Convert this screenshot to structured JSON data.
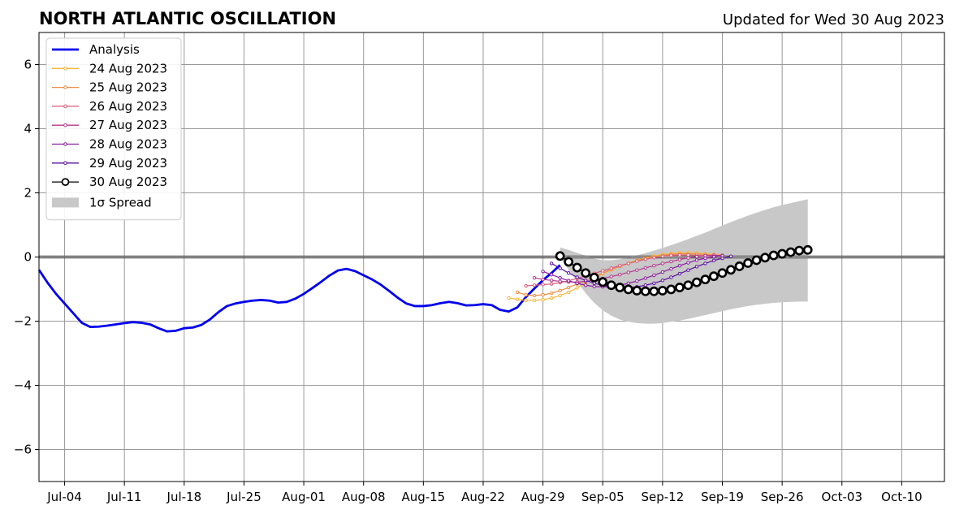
{
  "chart_data": {
    "type": "line",
    "title": "NORTH ATLANTIC OSCILLATION",
    "subtitle": "Updated for Wed 30 Aug 2023",
    "x_ticks": [
      "Jul-04",
      "Jul-11",
      "Jul-18",
      "Jul-25",
      "Aug-01",
      "Aug-08",
      "Aug-15",
      "Aug-22",
      "Aug-29",
      "Sep-05",
      "Sep-12",
      "Sep-19",
      "Sep-26",
      "Oct-03",
      "Oct-10"
    ],
    "y_ticks": [
      "6",
      "4",
      "2",
      "0",
      "−2",
      "−4",
      "−6"
    ],
    "xlim": [
      "2023-07-01",
      "2023-10-15"
    ],
    "ylim": [
      -7,
      7
    ],
    "grid": true,
    "legend_position": "top-left",
    "series": [
      {
        "name": "Analysis",
        "color": "#0000ee",
        "start_date": "2023-07-01",
        "values": [
          -0.4,
          -0.8,
          -1.15,
          -1.45,
          -1.75,
          -2.05,
          -2.18,
          -2.17,
          -2.14,
          -2.1,
          -2.06,
          -2.03,
          -2.05,
          -2.1,
          -2.22,
          -2.32,
          -2.3,
          -2.22,
          -2.2,
          -2.12,
          -1.95,
          -1.72,
          -1.53,
          -1.45,
          -1.4,
          -1.36,
          -1.34,
          -1.36,
          -1.42,
          -1.4,
          -1.3,
          -1.15,
          -0.97,
          -0.78,
          -0.58,
          -0.42,
          -0.37,
          -0.44,
          -0.57,
          -0.7,
          -0.86,
          -1.06,
          -1.27,
          -1.45,
          -1.53,
          -1.53,
          -1.5,
          -1.44,
          -1.4,
          -1.44,
          -1.51,
          -1.5,
          -1.47,
          -1.5,
          -1.65,
          -1.7,
          -1.57,
          -1.25,
          -0.98,
          -0.72,
          -0.5,
          -0.25
        ]
      },
      {
        "name": "24 Aug 2023",
        "color": "#f5b53a",
        "start_date": "2023-08-25",
        "values": [
          -1.28,
          -1.32,
          -1.35,
          -1.35,
          -1.33,
          -1.28,
          -1.2,
          -1.1,
          -0.96,
          -0.8,
          -0.65,
          -0.52,
          -0.4,
          -0.29,
          -0.19,
          -0.1,
          -0.03,
          0.03,
          0.08,
          0.11,
          0.13,
          0.13,
          0.12,
          0.1,
          0.08,
          0.06
        ]
      },
      {
        "name": "25 Aug 2023",
        "color": "#ef8c43",
        "start_date": "2023-08-26",
        "values": [
          -1.1,
          -1.18,
          -1.2,
          -1.18,
          -1.13,
          -1.05,
          -0.95,
          -0.84,
          -0.72,
          -0.61,
          -0.5,
          -0.39,
          -0.29,
          -0.2,
          -0.12,
          -0.05,
          0.0,
          0.05,
          0.08,
          0.1,
          0.1,
          0.09,
          0.08,
          0.06,
          0.04
        ]
      },
      {
        "name": "26 Aug 2023",
        "color": "#d85a78",
        "start_date": "2023-08-27",
        "values": [
          -0.9,
          -0.88,
          -0.86,
          -0.84,
          -0.8,
          -0.74,
          -0.67,
          -0.59,
          -0.51,
          -0.43,
          -0.35,
          -0.27,
          -0.2,
          -0.13,
          -0.07,
          -0.02,
          0.02,
          0.05,
          0.06,
          0.06,
          0.05,
          0.04,
          0.03,
          0.02
        ]
      },
      {
        "name": "27 Aug 2023",
        "color": "#b4388c",
        "start_date": "2023-08-28",
        "values": [
          -0.65,
          -0.7,
          -0.73,
          -0.76,
          -0.78,
          -0.78,
          -0.76,
          -0.72,
          -0.67,
          -0.61,
          -0.55,
          -0.48,
          -0.41,
          -0.34,
          -0.27,
          -0.2,
          -0.14,
          -0.08,
          -0.03,
          0.01,
          0.04,
          0.05,
          0.05
        ]
      },
      {
        "name": "28 Aug 2023",
        "color": "#8a1ea0",
        "start_date": "2023-08-29",
        "values": [
          -0.45,
          -0.55,
          -0.65,
          -0.74,
          -0.82,
          -0.88,
          -0.92,
          -0.93,
          -0.92,
          -0.88,
          -0.82,
          -0.75,
          -0.66,
          -0.57,
          -0.47,
          -0.37,
          -0.27,
          -0.18,
          -0.1,
          -0.04,
          0.01,
          0.04
        ]
      },
      {
        "name": "29 Aug 2023",
        "color": "#5a0f9e",
        "start_date": "2023-08-30",
        "values": [
          -0.2,
          -0.35,
          -0.5,
          -0.63,
          -0.73,
          -0.82,
          -0.88,
          -0.92,
          -0.95,
          -0.95,
          -0.93,
          -0.88,
          -0.82,
          -0.73,
          -0.63,
          -0.52,
          -0.41,
          -0.3,
          -0.2,
          -0.11,
          -0.04,
          0.02
        ]
      },
      {
        "name": "30 Aug 2023",
        "color": "#000000",
        "start_date": "2023-08-31",
        "values": [
          0.03,
          -0.15,
          -0.33,
          -0.5,
          -0.64,
          -0.78,
          -0.88,
          -0.95,
          -1.01,
          -1.05,
          -1.07,
          -1.07,
          -1.05,
          -1.01,
          -0.95,
          -0.88,
          -0.79,
          -0.7,
          -0.6,
          -0.5,
          -0.4,
          -0.29,
          -0.19,
          -0.1,
          -0.02,
          0.05,
          0.1,
          0.15,
          0.2,
          0.22
        ]
      }
    ],
    "spread": {
      "name": "1σ Spread",
      "color": "#c8c8c8",
      "start_date": "2023-08-31",
      "upper": [
        0.3,
        0.22,
        0.13,
        0.04,
        -0.05,
        -0.1,
        -0.1,
        -0.07,
        -0.02,
        0.05,
        0.12,
        0.2,
        0.28,
        0.37,
        0.46,
        0.56,
        0.66,
        0.76,
        0.87,
        0.98,
        1.09,
        1.19,
        1.29,
        1.38,
        1.47,
        1.55,
        1.62,
        1.68,
        1.74,
        1.8
      ],
      "lower": [
        0.0,
        -0.4,
        -0.78,
        -1.13,
        -1.43,
        -1.66,
        -1.83,
        -1.95,
        -2.02,
        -2.06,
        -2.08,
        -2.08,
        -2.06,
        -2.02,
        -1.98,
        -1.93,
        -1.87,
        -1.81,
        -1.75,
        -1.69,
        -1.63,
        -1.58,
        -1.53,
        -1.49,
        -1.46,
        -1.43,
        -1.41,
        -1.4,
        -1.39,
        -1.39
      ]
    }
  }
}
